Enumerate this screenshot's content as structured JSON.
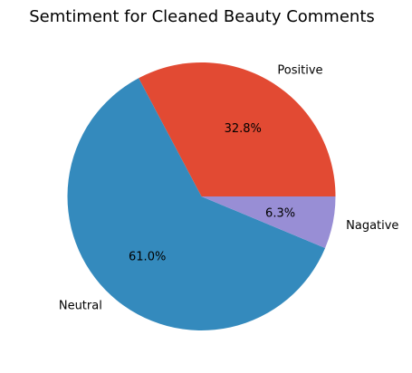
{
  "chart_data": {
    "type": "pie",
    "title": "Semtiment for Cleaned Beauty Comments",
    "slices": [
      {
        "label": "Positive",
        "value": 32.8,
        "pct_label": "32.8%",
        "color": "#e24a33"
      },
      {
        "label": "Neutral",
        "value": 61.0,
        "pct_label": "61.0%",
        "color": "#348abd"
      },
      {
        "label": "Nagative",
        "value": 6.3,
        "pct_label": "6.3%",
        "color": "#988ed5"
      }
    ]
  }
}
